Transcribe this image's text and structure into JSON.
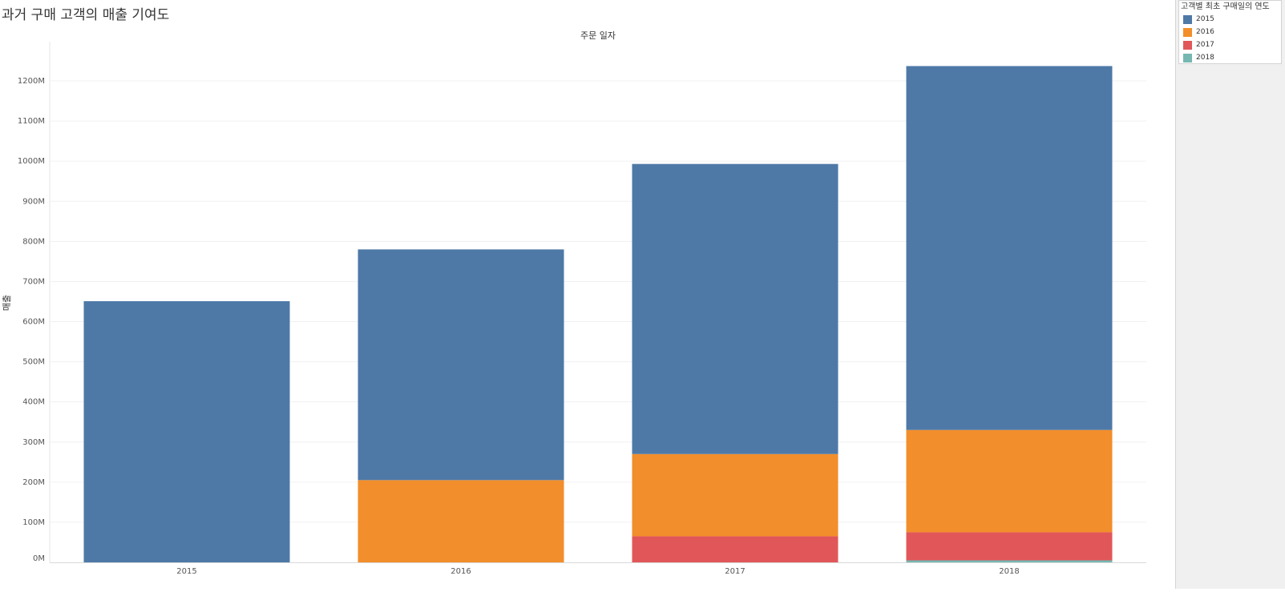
{
  "title": "과거 구매 고객의 매출 기여도",
  "legend": {
    "title": "고객별 최초 구매일의 연도",
    "items": [
      {
        "label": "2015",
        "color": "#4e79a7"
      },
      {
        "label": "2016",
        "color": "#f28e2b"
      },
      {
        "label": "2017",
        "color": "#e15759"
      },
      {
        "label": "2018",
        "color": "#76b7b2"
      }
    ]
  },
  "chart_data": {
    "type": "bar",
    "stacked": true,
    "title": "",
    "xlabel": "주문 일자",
    "ylabel": "매출",
    "categories": [
      "2015",
      "2016",
      "2017",
      "2018"
    ],
    "ylim": [
      0,
      1300
    ],
    "yticks": [
      0,
      100,
      200,
      300,
      400,
      500,
      600,
      700,
      800,
      900,
      1000,
      1100,
      1200
    ],
    "ytick_labels": [
      "0M",
      "100M",
      "200M",
      "300M",
      "400M",
      "500M",
      "600M",
      "700M",
      "800M",
      "900M",
      "1000M",
      "1100M",
      "1200M"
    ],
    "grid": true,
    "legend_position": "top-right",
    "series": [
      {
        "name": "2015",
        "color": "#4e79a7",
        "values": [
          651,
          575,
          723,
          907
        ]
      },
      {
        "name": "2016",
        "color": "#f28e2b",
        "values": [
          0,
          205,
          205,
          255
        ]
      },
      {
        "name": "2017",
        "color": "#e15759",
        "values": [
          0,
          0,
          65,
          70
        ]
      },
      {
        "name": "2018",
        "color": "#76b7b2",
        "values": [
          0,
          0,
          0,
          5
        ]
      }
    ]
  }
}
